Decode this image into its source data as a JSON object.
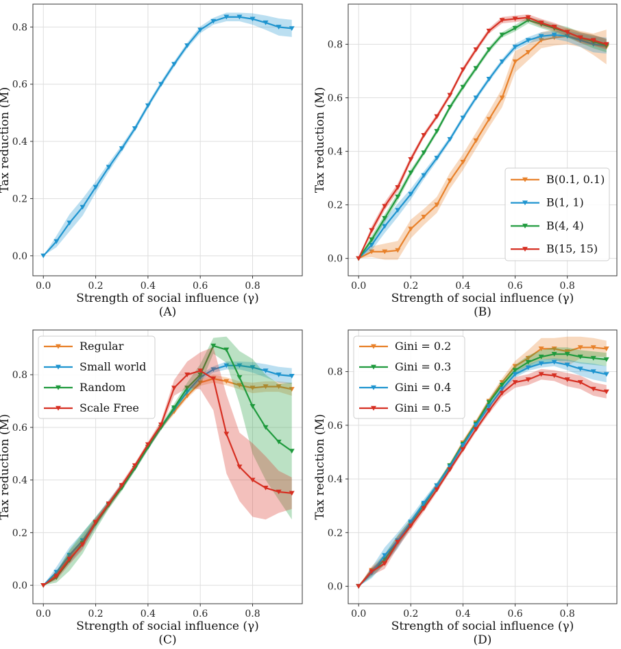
{
  "colors": {
    "orange": "#e8812a",
    "blue": "#1e94cf",
    "green": "#1f9a3d",
    "red": "#d62f22"
  },
  "chart_data": [
    {
      "type": "line",
      "caption": "(A)",
      "xlabel": "Strength of social influence (γ)",
      "ylabel": "Tax reduction (M)",
      "xlim": [
        -0.04,
        0.99
      ],
      "ylim": [
        -0.07,
        0.88
      ],
      "xticks": [
        0.0,
        0.2,
        0.4,
        0.6,
        0.8
      ],
      "xtick_labels": [
        "0.0",
        "0.2",
        "0.4",
        "0.6",
        "0.8"
      ],
      "yticks": [
        0.0,
        0.2,
        0.4,
        0.6,
        0.8
      ],
      "ytick_labels": [
        "0.0",
        "0.2",
        "0.4",
        "0.6",
        "0.8"
      ],
      "legend": null,
      "x": [
        0.0,
        0.05,
        0.1,
        0.15,
        0.2,
        0.25,
        0.3,
        0.35,
        0.4,
        0.45,
        0.5,
        0.55,
        0.6,
        0.65,
        0.7,
        0.75,
        0.8,
        0.85,
        0.9,
        0.95
      ],
      "series": [
        {
          "name": "",
          "color": "#1e94cf",
          "values": [
            0.0,
            0.05,
            0.115,
            0.17,
            0.24,
            0.31,
            0.375,
            0.445,
            0.525,
            0.6,
            0.67,
            0.735,
            0.79,
            0.82,
            0.835,
            0.835,
            0.828,
            0.815,
            0.8,
            0.795
          ],
          "band": [
            0.0,
            0.02,
            0.03,
            0.03,
            0.02,
            0.015,
            0.012,
            0.01,
            0.01,
            0.01,
            0.01,
            0.01,
            0.012,
            0.012,
            0.015,
            0.015,
            0.02,
            0.025,
            0.03,
            0.03
          ]
        }
      ]
    },
    {
      "type": "line",
      "caption": "(B)",
      "xlabel": "Strength of social influence (γ)",
      "ylabel": "Tax reduction (M)",
      "xlim": [
        -0.04,
        0.99
      ],
      "ylim": [
        -0.065,
        0.95
      ],
      "xticks": [
        0.0,
        0.2,
        0.4,
        0.6,
        0.8
      ],
      "xtick_labels": [
        "0.0",
        "0.2",
        "0.4",
        "0.6",
        "0.8"
      ],
      "yticks": [
        0.0,
        0.2,
        0.4,
        0.6,
        0.8
      ],
      "ytick_labels": [
        "0.0",
        "0.2",
        "0.4",
        "0.6",
        "0.8"
      ],
      "legend": "bottom-right",
      "x": [
        0.0,
        0.05,
        0.1,
        0.15,
        0.2,
        0.25,
        0.3,
        0.35,
        0.4,
        0.45,
        0.5,
        0.55,
        0.6,
        0.65,
        0.7,
        0.75,
        0.8,
        0.85,
        0.9,
        0.95
      ],
      "series": [
        {
          "name": "B(0.1, 0.1)",
          "color": "#e8812a",
          "values": [
            0.0,
            0.025,
            0.025,
            0.03,
            0.11,
            0.155,
            0.2,
            0.29,
            0.36,
            0.44,
            0.52,
            0.6,
            0.735,
            0.77,
            0.815,
            0.825,
            0.83,
            0.82,
            0.8,
            0.79
          ],
          "band": [
            0.0,
            0.02,
            0.03,
            0.035,
            0.035,
            0.03,
            0.03,
            0.03,
            0.03,
            0.03,
            0.03,
            0.035,
            0.04,
            0.03,
            0.03,
            0.03,
            0.03,
            0.03,
            0.04,
            0.065
          ]
        },
        {
          "name": "B(1, 1)",
          "color": "#1e94cf",
          "values": [
            0.0,
            0.05,
            0.12,
            0.18,
            0.24,
            0.31,
            0.375,
            0.445,
            0.525,
            0.6,
            0.67,
            0.735,
            0.79,
            0.815,
            0.83,
            0.835,
            0.83,
            0.815,
            0.8,
            0.795
          ],
          "band": [
            0.0,
            0.02,
            0.025,
            0.025,
            0.02,
            0.015,
            0.012,
            0.01,
            0.01,
            0.01,
            0.01,
            0.01,
            0.012,
            0.012,
            0.015,
            0.015,
            0.02,
            0.025,
            0.03,
            0.03
          ]
        },
        {
          "name": "B(4, 4)",
          "color": "#1f9a3d",
          "values": [
            0.0,
            0.07,
            0.15,
            0.23,
            0.32,
            0.395,
            0.475,
            0.565,
            0.64,
            0.71,
            0.78,
            0.835,
            0.86,
            0.89,
            0.875,
            0.86,
            0.845,
            0.825,
            0.81,
            0.795
          ],
          "band": [
            0.0,
            0.015,
            0.015,
            0.015,
            0.012,
            0.01,
            0.01,
            0.01,
            0.01,
            0.01,
            0.01,
            0.01,
            0.012,
            0.012,
            0.015,
            0.015,
            0.02,
            0.02,
            0.025,
            0.025
          ]
        },
        {
          "name": "B(15, 15)",
          "color": "#d62f22",
          "values": [
            0.0,
            0.105,
            0.195,
            0.265,
            0.37,
            0.46,
            0.53,
            0.61,
            0.705,
            0.78,
            0.85,
            0.89,
            0.895,
            0.9,
            0.88,
            0.865,
            0.845,
            0.825,
            0.815,
            0.8
          ],
          "band": [
            0.0,
            0.015,
            0.015,
            0.015,
            0.012,
            0.01,
            0.01,
            0.01,
            0.01,
            0.01,
            0.01,
            0.012,
            0.012,
            0.012,
            0.015,
            0.015,
            0.015,
            0.02,
            0.02,
            0.02
          ]
        }
      ]
    },
    {
      "type": "line",
      "caption": "(C)",
      "xlabel": "Strength of social influence (γ)",
      "ylabel": "Tax reduction (M)",
      "xlim": [
        -0.04,
        0.99
      ],
      "ylim": [
        -0.07,
        0.97
      ],
      "xticks": [
        0.0,
        0.2,
        0.4,
        0.6,
        0.8
      ],
      "xtick_labels": [
        "0.0",
        "0.2",
        "0.4",
        "0.6",
        "0.8"
      ],
      "yticks": [
        0.0,
        0.2,
        0.4,
        0.6,
        0.8
      ],
      "ytick_labels": [
        "0.0",
        "0.2",
        "0.4",
        "0.6",
        "0.8"
      ],
      "legend": "top-left",
      "x": [
        0.0,
        0.05,
        0.1,
        0.15,
        0.2,
        0.25,
        0.3,
        0.35,
        0.4,
        0.45,
        0.5,
        0.55,
        0.6,
        0.65,
        0.7,
        0.75,
        0.8,
        0.85,
        0.9,
        0.95
      ],
      "series": [
        {
          "name": "Regular",
          "color": "#e8812a",
          "values": [
            0.0,
            0.04,
            0.11,
            0.17,
            0.24,
            0.305,
            0.375,
            0.445,
            0.525,
            0.6,
            0.66,
            0.72,
            0.77,
            0.785,
            0.775,
            0.76,
            0.75,
            0.755,
            0.755,
            0.745
          ],
          "band": [
            0.0,
            0.015,
            0.02,
            0.02,
            0.015,
            0.012,
            0.012,
            0.01,
            0.01,
            0.01,
            0.01,
            0.01,
            0.012,
            0.015,
            0.015,
            0.015,
            0.02,
            0.02,
            0.02,
            0.025
          ]
        },
        {
          "name": "Small world",
          "color": "#1e94cf",
          "values": [
            0.0,
            0.05,
            0.115,
            0.17,
            0.24,
            0.31,
            0.375,
            0.445,
            0.525,
            0.6,
            0.67,
            0.735,
            0.79,
            0.82,
            0.835,
            0.835,
            0.828,
            0.815,
            0.8,
            0.795
          ],
          "band": [
            0.0,
            0.02,
            0.03,
            0.03,
            0.02,
            0.015,
            0.012,
            0.01,
            0.01,
            0.01,
            0.01,
            0.01,
            0.012,
            0.012,
            0.015,
            0.015,
            0.02,
            0.025,
            0.03,
            0.03
          ]
        },
        {
          "name": "Random",
          "color": "#1f9a3d",
          "values": [
            0.0,
            0.03,
            0.095,
            0.16,
            0.235,
            0.305,
            0.37,
            0.445,
            0.525,
            0.6,
            0.675,
            0.75,
            0.8,
            0.91,
            0.895,
            0.79,
            0.68,
            0.6,
            0.545,
            0.51
          ],
          "band": [
            0.0,
            0.02,
            0.04,
            0.04,
            0.025,
            0.015,
            0.012,
            0.01,
            0.01,
            0.01,
            0.015,
            0.02,
            0.04,
            0.03,
            0.05,
            0.1,
            0.18,
            0.2,
            0.22,
            0.26
          ]
        },
        {
          "name": "Scale Free",
          "color": "#d62f22",
          "values": [
            0.0,
            0.035,
            0.1,
            0.155,
            0.24,
            0.31,
            0.38,
            0.455,
            0.535,
            0.61,
            0.75,
            0.8,
            0.815,
            0.785,
            0.575,
            0.45,
            0.4,
            0.37,
            0.355,
            0.35
          ],
          "band": [
            0.0,
            0.015,
            0.02,
            0.02,
            0.015,
            0.012,
            0.012,
            0.01,
            0.01,
            0.015,
            0.03,
            0.05,
            0.07,
            0.12,
            0.15,
            0.13,
            0.14,
            0.12,
            0.08,
            0.06
          ]
        }
      ]
    },
    {
      "type": "line",
      "caption": "(D)",
      "xlabel": "Strength of social influence (γ)",
      "ylabel": "Tax reduction (M)",
      "xlim": [
        -0.04,
        0.99
      ],
      "ylim": [
        -0.065,
        0.955
      ],
      "xticks": [
        0.0,
        0.2,
        0.4,
        0.6,
        0.8
      ],
      "xtick_labels": [
        "0.0",
        "0.2",
        "0.4",
        "0.6",
        "0.8"
      ],
      "yticks": [
        0.0,
        0.2,
        0.4,
        0.6,
        0.8
      ],
      "ytick_labels": [
        "0.0",
        "0.2",
        "0.4",
        "0.6",
        "0.8"
      ],
      "legend": "top-left",
      "x": [
        0.0,
        0.05,
        0.1,
        0.15,
        0.2,
        0.25,
        0.3,
        0.35,
        0.4,
        0.45,
        0.5,
        0.55,
        0.6,
        0.65,
        0.7,
        0.75,
        0.8,
        0.85,
        0.9,
        0.95
      ],
      "series": [
        {
          "name": "Gini = 0.2",
          "color": "#e8812a",
          "values": [
            0.0,
            0.06,
            0.1,
            0.17,
            0.235,
            0.3,
            0.375,
            0.45,
            0.535,
            0.61,
            0.69,
            0.76,
            0.82,
            0.85,
            0.885,
            0.885,
            0.875,
            0.89,
            0.89,
            0.885
          ],
          "band": [
            0.0,
            0.015,
            0.02,
            0.02,
            0.015,
            0.012,
            0.01,
            0.01,
            0.01,
            0.01,
            0.012,
            0.015,
            0.02,
            0.03,
            0.04,
            0.04,
            0.055,
            0.04,
            0.035,
            0.03
          ]
        },
        {
          "name": "Gini = 0.3",
          "color": "#1f9a3d",
          "values": [
            0.0,
            0.05,
            0.1,
            0.17,
            0.235,
            0.305,
            0.375,
            0.45,
            0.53,
            0.605,
            0.685,
            0.75,
            0.805,
            0.835,
            0.855,
            0.865,
            0.865,
            0.855,
            0.85,
            0.845
          ],
          "band": [
            0.0,
            0.015,
            0.02,
            0.02,
            0.015,
            0.012,
            0.01,
            0.01,
            0.01,
            0.01,
            0.012,
            0.015,
            0.02,
            0.025,
            0.025,
            0.025,
            0.025,
            0.025,
            0.025,
            0.025
          ]
        },
        {
          "name": "Gini = 0.4",
          "color": "#1e94cf",
          "values": [
            0.0,
            0.05,
            0.115,
            0.17,
            0.24,
            0.31,
            0.375,
            0.445,
            0.525,
            0.6,
            0.67,
            0.735,
            0.79,
            0.815,
            0.83,
            0.835,
            0.825,
            0.81,
            0.8,
            0.79
          ],
          "band": [
            0.0,
            0.02,
            0.03,
            0.03,
            0.02,
            0.015,
            0.012,
            0.01,
            0.01,
            0.01,
            0.01,
            0.01,
            0.012,
            0.012,
            0.015,
            0.015,
            0.02,
            0.025,
            0.03,
            0.03
          ]
        },
        {
          "name": "Gini = 0.5",
          "color": "#d62f22",
          "values": [
            0.0,
            0.055,
            0.085,
            0.165,
            0.225,
            0.29,
            0.36,
            0.435,
            0.51,
            0.585,
            0.655,
            0.72,
            0.76,
            0.77,
            0.79,
            0.785,
            0.77,
            0.76,
            0.735,
            0.725
          ],
          "band": [
            0.0,
            0.015,
            0.02,
            0.02,
            0.015,
            0.012,
            0.01,
            0.01,
            0.01,
            0.01,
            0.012,
            0.015,
            0.02,
            0.02,
            0.02,
            0.02,
            0.025,
            0.025,
            0.025,
            0.025
          ]
        }
      ]
    }
  ]
}
